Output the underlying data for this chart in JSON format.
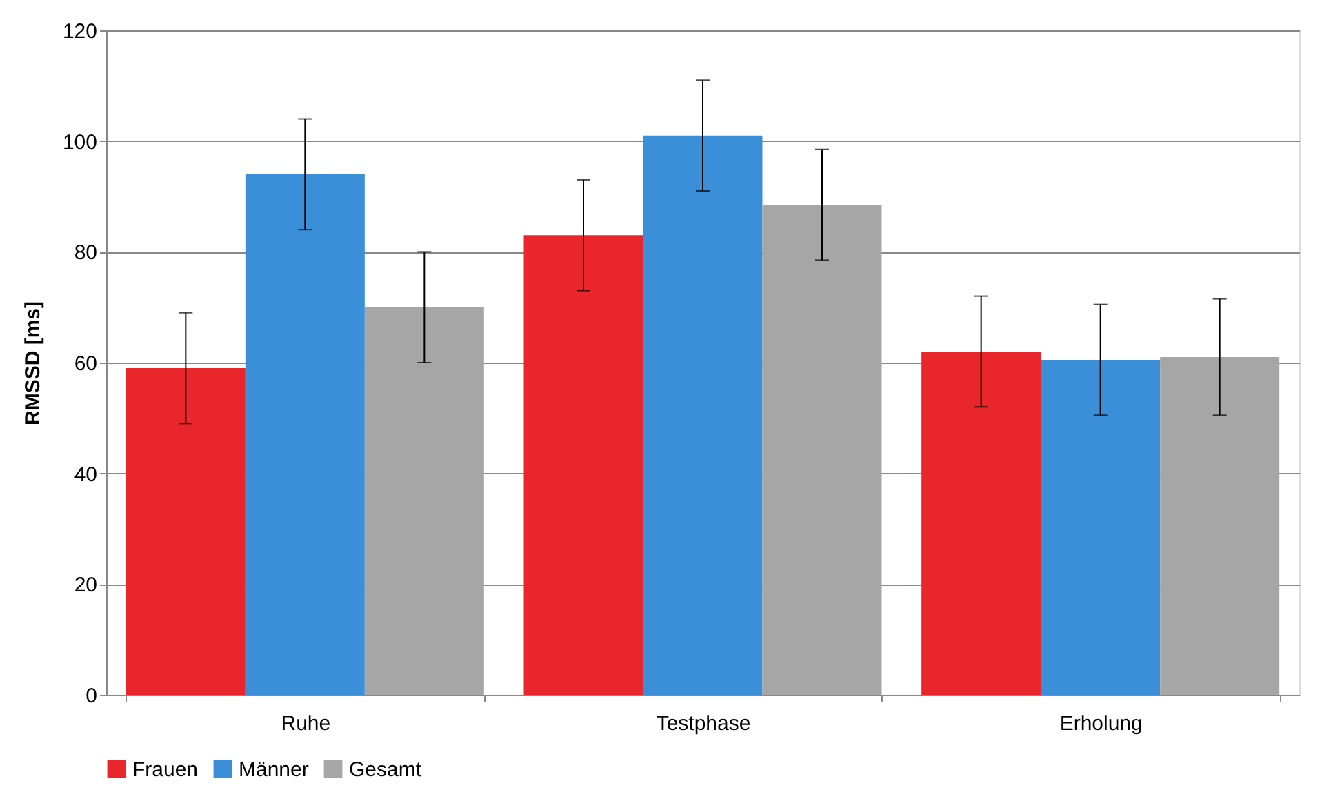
{
  "chart_data": {
    "type": "bar",
    "ylabel": "RMSSD [ms]",
    "categories": [
      "Ruhe",
      "Testphase",
      "Erholung"
    ],
    "series": [
      {
        "name": "Frauen",
        "color": "#e8262c",
        "values": [
          59,
          83,
          62
        ],
        "errors": [
          10,
          10,
          10
        ]
      },
      {
        "name": "Männer",
        "color": "#3b8fd8",
        "values": [
          94,
          101,
          60.5
        ],
        "errors": [
          10,
          10,
          10
        ]
      },
      {
        "name": "Gesamt",
        "color": "#a6a6a6",
        "values": [
          70,
          88.5,
          61
        ],
        "errors": [
          10,
          10,
          10.5
        ]
      }
    ],
    "ylim": [
      0,
      120
    ],
    "yticks": [
      0,
      20,
      40,
      60,
      80,
      100,
      120
    ],
    "grid": "y",
    "legend": "bottom"
  }
}
